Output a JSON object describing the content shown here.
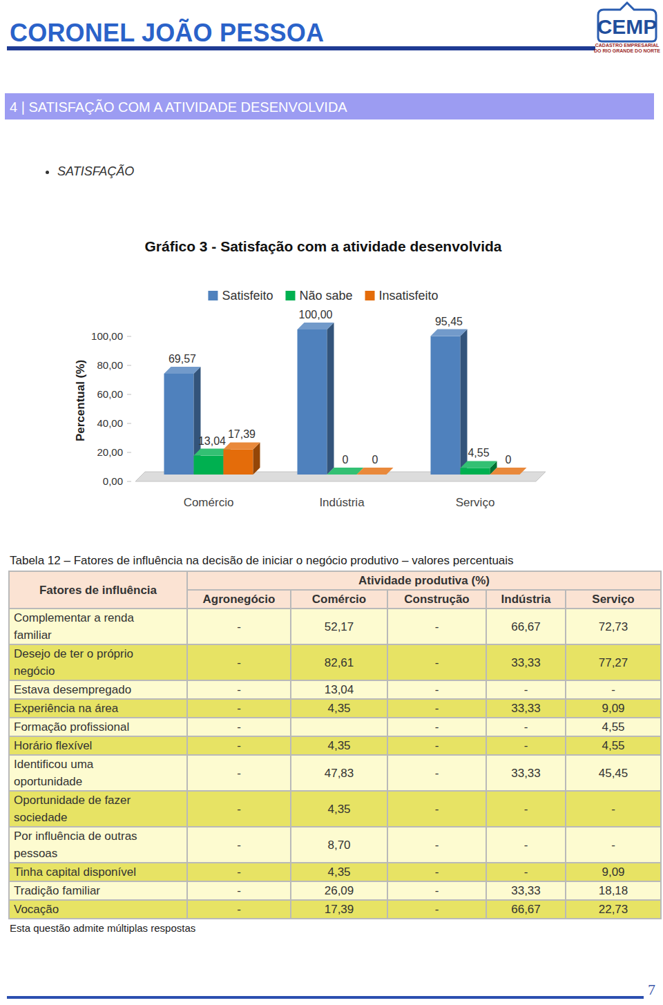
{
  "header": {
    "title": "CORONEL JOÃO PESSOA",
    "logo": {
      "name": "CEMP",
      "subtitle": [
        "CADASTRO EMPRESARIAL",
        "DO RIO GRANDE DO NORTE"
      ]
    }
  },
  "section": "4 | SATISFAÇÃO COM A ATIVIDADE DESENVOLVIDA",
  "bullet": "SATISFAÇÃO",
  "chart_data": {
    "type": "bar",
    "title": "Gráfico 3 - Satisfação com a atividade desenvolvida",
    "y_label": "Percentual (%)",
    "categories": [
      "Comércio",
      "Indústria",
      "Serviço"
    ],
    "series": [
      {
        "name": "Satisfeito",
        "color": "#4f81bd",
        "values": [
          69.57,
          100,
          95.45
        ],
        "value_labels": [
          "69,57",
          "100,00",
          "95,45"
        ]
      },
      {
        "name": "Não sabe",
        "color": "#00b050",
        "values": [
          13.04,
          0,
          4.55
        ],
        "value_labels": [
          "13,04",
          "0",
          "4,55"
        ]
      },
      {
        "name": "Insatisfeito",
        "color": "#e46c0a",
        "values": [
          17.39,
          0,
          0
        ],
        "value_labels": [
          "17,39",
          "0",
          "0"
        ]
      }
    ],
    "ylim": [
      0,
      100
    ],
    "yticks": [
      {
        "value": 0,
        "label": "0,00"
      },
      {
        "value": 20,
        "label": "20,00"
      },
      {
        "value": 40,
        "label": "40,00"
      },
      {
        "value": 60,
        "label": "60,00"
      },
      {
        "value": 80,
        "label": "80,00"
      },
      {
        "value": 100,
        "label": "100,00"
      }
    ],
    "grid": false,
    "legend": "top",
    "data_labels": true
  },
  "table": {
    "caption": "Tabela 12 – Fatores de influência na decisão de iniciar o negócio produtivo – valores percentuais",
    "row_header": "Fatores de influência",
    "group_header": "Atividade produtiva (%)",
    "columns": [
      "Agronegócio",
      "Comércio",
      "Construção",
      "Indústria",
      "Serviço"
    ],
    "rows": [
      {
        "label": "Complementar a renda familiar",
        "cells": [
          "-",
          "52,17",
          "-",
          "66,67",
          "72,73"
        ]
      },
      {
        "label": "Desejo de ter o próprio negócio",
        "cells": [
          "-",
          "82,61",
          "-",
          "33,33",
          "77,27"
        ]
      },
      {
        "label": "Estava desempregado",
        "cells": [
          "-",
          "13,04",
          "-",
          "-",
          "-"
        ]
      },
      {
        "label": "Experiência na área",
        "cells": [
          "-",
          "4,35",
          "-",
          "33,33",
          "9,09"
        ]
      },
      {
        "label": "Formação profissional",
        "cells": [
          "-",
          null,
          "-",
          "-",
          "4,55"
        ]
      },
      {
        "label": "Horário flexível",
        "cells": [
          "-",
          "4,35",
          "-",
          "-",
          "4,55"
        ]
      },
      {
        "label": "Identificou uma oportunidade",
        "cells": [
          "-",
          "47,83",
          "-",
          "33,33",
          "45,45"
        ]
      },
      {
        "label": "Oportunidade de fazer sociedade",
        "cells": [
          "-",
          "4,35",
          "-",
          "-",
          "-"
        ]
      },
      {
        "label": "Por influência de outras pessoas",
        "cells": [
          "-",
          "8,70",
          "-",
          "-",
          "-"
        ]
      },
      {
        "label": "Tinha capital disponível",
        "cells": [
          "-",
          "4,35",
          "-",
          "-",
          "9,09"
        ]
      },
      {
        "label": "Tradição familiar",
        "cells": [
          "-",
          "26,09",
          "-",
          "33,33",
          "18,18"
        ]
      },
      {
        "label": "Vocação",
        "cells": [
          "-",
          "17,39",
          "-",
          "66,67",
          "22,73"
        ]
      }
    ]
  },
  "footnote": "Esta questão admite múltiplas respostas",
  "page_number": "7"
}
